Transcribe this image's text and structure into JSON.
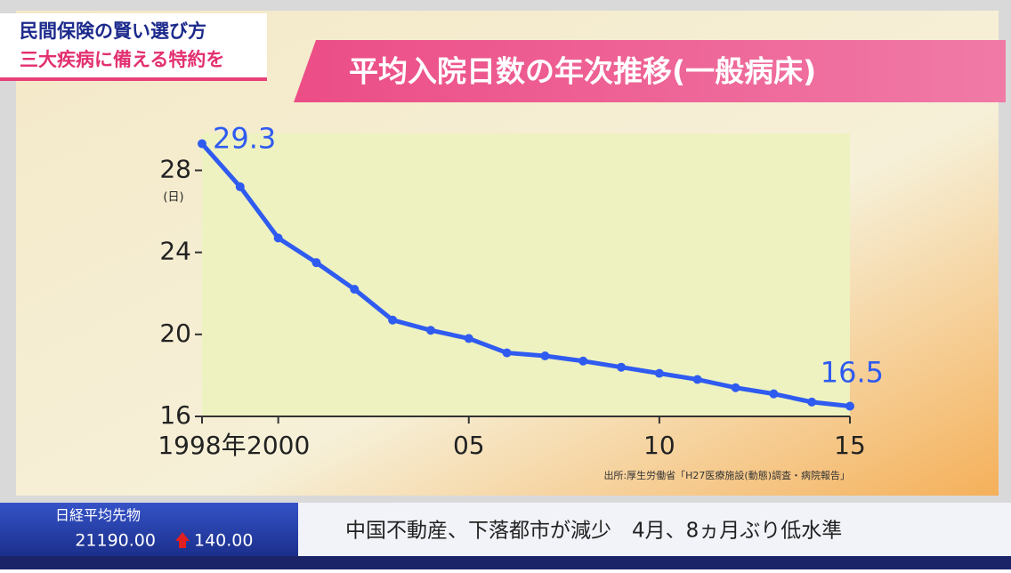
{
  "broadcast": {
    "header": [
      "民間保険の賢い選び方",
      "三大疾病に備える特約を"
    ],
    "ticker": {
      "label": "日経平均先物",
      "price": "21190.00",
      "change": "140.00"
    },
    "news": "中国不動産、下落都市が減少　4月、8ヵ月ぶり低水準"
  },
  "chart_data": {
    "type": "line",
    "title": "平均入院日数の年次推移(一般病床)",
    "y_unit": "(日)",
    "source": "出所:厚生労働省「H27医療施設(動態)調査・病院報告」",
    "x": [
      1998,
      1999,
      2000,
      2001,
      2002,
      2003,
      2004,
      2005,
      2006,
      2007,
      2008,
      2009,
      2010,
      2011,
      2012,
      2013,
      2014,
      2015
    ],
    "values": [
      29.3,
      27.2,
      24.7,
      23.5,
      22.2,
      20.7,
      20.2,
      19.8,
      19.1,
      18.95,
      18.7,
      18.4,
      18.1,
      17.8,
      17.4,
      17.1,
      16.7,
      16.5
    ],
    "color": "#2f5bf0",
    "xlim": [
      1998,
      2015
    ],
    "xticks": [
      {
        "value": 1998,
        "label": "1998年"
      },
      2000,
      {
        "value": 2005,
        "label": "05"
      },
      {
        "value": 2010,
        "label": "10"
      },
      {
        "value": 2015,
        "label": "15"
      }
    ],
    "ylim": [
      16,
      29.8
    ],
    "yticks": [
      16,
      20,
      24,
      28
    ]
  }
}
